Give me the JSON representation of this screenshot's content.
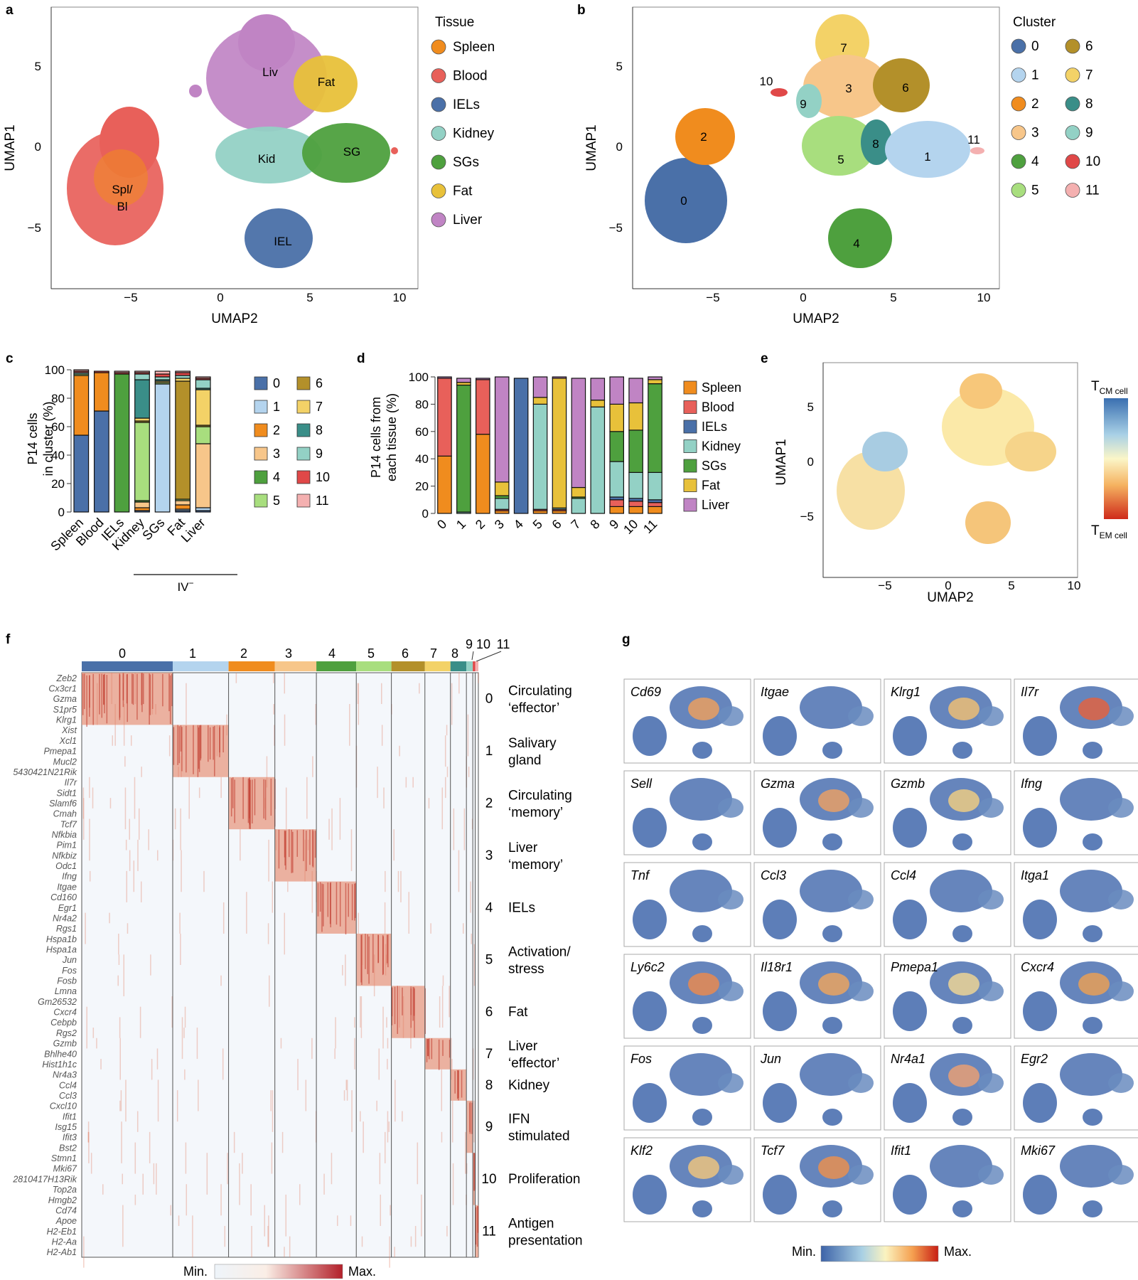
{
  "panels": {
    "a": "a",
    "b": "b",
    "c": "c",
    "d": "d",
    "e": "e",
    "f": "f",
    "g": "g"
  },
  "umap": {
    "x_title": "UMAP2",
    "y_title": "UMAP1",
    "x_ticks": [
      "−5",
      "0",
      "5",
      "10"
    ],
    "y_ticks": [
      "5",
      "0",
      "−5"
    ]
  },
  "panel_a": {
    "legend_title": "Tissue",
    "legend": [
      {
        "name": "Spleen",
        "color": "#f08c1e"
      },
      {
        "name": "Blood",
        "color": "#e8605a"
      },
      {
        "name": "IELs",
        "color": "#4a70a8"
      },
      {
        "name": "Kidney",
        "color": "#93d1c5"
      },
      {
        "name": "SGs",
        "color": "#4ea03e"
      },
      {
        "name": "Fat",
        "color": "#e8c13a"
      },
      {
        "name": "Liver",
        "color": "#c084c4"
      }
    ],
    "cluster_labels": [
      "Liv",
      "Fat",
      "Kid",
      "SG",
      "Spl/",
      "Bl",
      "IEL"
    ]
  },
  "panel_b": {
    "legend_title": "Cluster",
    "legend": [
      {
        "name": "0",
        "color": "#4a70a8"
      },
      {
        "name": "1",
        "color": "#b4d4ee"
      },
      {
        "name": "2",
        "color": "#f08c1e"
      },
      {
        "name": "3",
        "color": "#f7c68a"
      },
      {
        "name": "4",
        "color": "#4ea03e"
      },
      {
        "name": "5",
        "color": "#a8de7e"
      },
      {
        "name": "6",
        "color": "#b3902a"
      },
      {
        "name": "7",
        "color": "#f3d267"
      },
      {
        "name": "8",
        "color": "#3a8e88"
      },
      {
        "name": "9",
        "color": "#93d1c5"
      },
      {
        "name": "10",
        "color": "#e04848"
      },
      {
        "name": "11",
        "color": "#f4b0b0"
      }
    ],
    "cluster_labels": [
      "7",
      "10",
      "3",
      "6",
      "9",
      "2",
      "8",
      "11",
      "5",
      "1",
      "0",
      "4"
    ]
  },
  "panel_c": {
    "y_title_1": "P14 cells",
    "y_title_2": "in cluster (%)",
    "y_ticks": [
      "100",
      "80",
      "60",
      "40",
      "20",
      "0"
    ],
    "bracket_label": "IV",
    "bracket_sup": "−"
  },
  "panel_d": {
    "y_title_1": "P14 cells from",
    "y_title_2": "each tissue (%)",
    "y_ticks": [
      "100",
      "80",
      "60",
      "40",
      "20",
      "0"
    ]
  },
  "panel_e": {
    "top_label": "T",
    "top_sub": "CM cell",
    "bottom_label": "T",
    "bottom_sub": "EM cell"
  },
  "chart_data": [
    {
      "type": "bar",
      "title": "",
      "ylabel": "P14 cells in cluster (%)",
      "ylim": [
        0,
        100
      ],
      "stacked": true,
      "categories": [
        "Spleen",
        "Blood",
        "IELs",
        "Kidney",
        "SGs",
        "Fat",
        "Liver"
      ],
      "series": [
        {
          "name": "0",
          "values": [
            54,
            71,
            0,
            1,
            0,
            1,
            1
          ]
        },
        {
          "name": "1",
          "values": [
            0,
            0,
            0,
            0,
            90,
            1,
            2
          ]
        },
        {
          "name": "2",
          "values": [
            42,
            27,
            0,
            2,
            0,
            3,
            0
          ]
        },
        {
          "name": "3",
          "values": [
            0,
            0,
            0,
            4,
            0,
            3,
            45
          ]
        },
        {
          "name": "4",
          "values": [
            0,
            0,
            97,
            1,
            0,
            0,
            0
          ]
        },
        {
          "name": "5",
          "values": [
            1,
            0,
            0,
            55,
            1,
            1,
            12
          ]
        },
        {
          "name": "6",
          "values": [
            0,
            0,
            0,
            1,
            0,
            83,
            1
          ]
        },
        {
          "name": "7",
          "values": [
            0,
            0,
            0,
            2,
            1,
            2,
            25
          ]
        },
        {
          "name": "8",
          "values": [
            0,
            0,
            0,
            27,
            1,
            0,
            1
          ]
        },
        {
          "name": "9",
          "values": [
            1,
            0,
            0,
            4,
            2,
            2,
            6
          ]
        },
        {
          "name": "10",
          "values": [
            1,
            1,
            1,
            1,
            2,
            2,
            1
          ]
        },
        {
          "name": "11",
          "values": [
            1,
            0,
            1,
            1,
            2,
            1,
            1
          ]
        }
      ],
      "legend": [
        "0",
        "1",
        "2",
        "3",
        "4",
        "5",
        "6",
        "7",
        "8",
        "9",
        "10",
        "11"
      ]
    },
    {
      "type": "bar",
      "title": "",
      "ylabel": "P14 cells from each tissue (%)",
      "ylim": [
        0,
        100
      ],
      "stacked": true,
      "categories": [
        "0",
        "1",
        "2",
        "3",
        "4",
        "5",
        "6",
        "7",
        "8",
        "9",
        "10",
        "11"
      ],
      "series": [
        {
          "name": "Spleen",
          "values": [
            42,
            0,
            58,
            2,
            0,
            2,
            2,
            0,
            0,
            5,
            5,
            5
          ]
        },
        {
          "name": "Blood",
          "values": [
            57,
            0,
            40,
            1,
            0,
            1,
            1,
            0,
            0,
            5,
            4,
            3
          ]
        },
        {
          "name": "IELs",
          "values": [
            0,
            0,
            0,
            0,
            99,
            0,
            0,
            0,
            0,
            2,
            2,
            2
          ]
        },
        {
          "name": "Kidney",
          "values": [
            0,
            1,
            0,
            8,
            0,
            77,
            1,
            11,
            78,
            26,
            19,
            20
          ]
        },
        {
          "name": "SGs",
          "values": [
            0,
            93,
            0,
            2,
            0,
            0,
            0,
            1,
            0,
            22,
            31,
            65
          ]
        },
        {
          "name": "Fat",
          "values": [
            0,
            2,
            0,
            10,
            0,
            5,
            95,
            7,
            5,
            20,
            20,
            3
          ]
        },
        {
          "name": "Liver",
          "values": [
            1,
            3,
            1,
            77,
            0,
            15,
            1,
            80,
            16,
            20,
            18,
            2
          ]
        }
      ],
      "legend": [
        "Spleen",
        "Blood",
        "IELs",
        "Kidney",
        "SGs",
        "Fat",
        "Liver"
      ]
    }
  ],
  "panel_f": {
    "cluster_headers": [
      "0",
      "1",
      "2",
      "3",
      "4",
      "5",
      "6",
      "7",
      "8",
      "9",
      "10",
      "11"
    ],
    "cluster_widths": [
      114,
      70,
      58,
      52,
      50,
      44,
      42,
      32,
      20,
      8,
      3,
      4
    ],
    "cluster_colors": [
      "#4a70a8",
      "#b4d4ee",
      "#f08c1e",
      "#f7c68a",
      "#4ea03e",
      "#a8de7e",
      "#b3902a",
      "#f3d267",
      "#3a8e88",
      "#93d1c5",
      "#e04848",
      "#f4b0b0"
    ],
    "genes": [
      "Zeb2",
      "Cx3cr1",
      "Gzma",
      "S1pr5",
      "Klrg1",
      "Xist",
      "Xcl1",
      "Pmepa1",
      "Mucl2",
      "5430421N21Rik",
      "Il7r",
      "Sidt1",
      "Slamf6",
      "Cmah",
      "Tcf7",
      "Nfkbia",
      "Pim1",
      "Nfkbiz",
      "Odc1",
      "Ifng",
      "Itgae",
      "Cd160",
      "Egr1",
      "Nr4a2",
      "Rgs1",
      "Hspa1b",
      "Hspa1a",
      "Jun",
      "Fos",
      "Fosb",
      "Lmna",
      "Gm26532",
      "Cxcr4",
      "Cebpb",
      "Rgs2",
      "Gzmb",
      "Bhlhe40",
      "Hist1h1c",
      "Nr4a3",
      "Ccl4",
      "Ccl3",
      "Cxcl10",
      "Ifit1",
      "Isg15",
      "Ifit3",
      "Bst2",
      "Stmn1",
      "Mki67",
      "2810417H13Rik",
      "Top2a",
      "Hmgb2",
      "Cd74",
      "Apoe",
      "H2-Eb1",
      "H2-Aa",
      "H2-Ab1"
    ],
    "annotations": [
      {
        "num": "0",
        "line1": "Circulating",
        "line2": "‘effector’"
      },
      {
        "num": "1",
        "line1": "Salivary",
        "line2": "gland"
      },
      {
        "num": "2",
        "line1": "Circulating",
        "line2": "‘memory’"
      },
      {
        "num": "3",
        "line1": "Liver",
        "line2": "‘memory’"
      },
      {
        "num": "4",
        "line1": "IELs",
        "line2": ""
      },
      {
        "num": "5",
        "line1": "Activation/",
        "line2": "stress"
      },
      {
        "num": "6",
        "line1": "Fat",
        "line2": ""
      },
      {
        "num": "7",
        "line1": "Liver",
        "line2": "‘effector’"
      },
      {
        "num": "8",
        "line1": "Kidney",
        "line2": ""
      },
      {
        "num": "9",
        "line1": "IFN",
        "line2": "stimulated"
      },
      {
        "num": "10",
        "line1": "Proliferation",
        "line2": ""
      },
      {
        "num": "11",
        "line1": "Antigen",
        "line2": "presentation"
      }
    ],
    "scale_min": "Min.",
    "scale_max": "Max."
  },
  "panel_g": {
    "genes": [
      "Cd69",
      "Itgae",
      "Klrg1",
      "Il7r",
      "Sell",
      "Gzma",
      "Gzmb",
      "Ifng",
      "Tnf",
      "Ccl3",
      "Ccl4",
      "Itga1",
      "Ly6c2",
      "Il18r1",
      "Pmepa1",
      "Cxcr4",
      "Fos",
      "Jun",
      "Nr4a1",
      "Egr2",
      "Klf2",
      "Tcf7",
      "Ifit1",
      "Mki67"
    ],
    "scale_min": "Min.",
    "scale_max": "Max."
  }
}
